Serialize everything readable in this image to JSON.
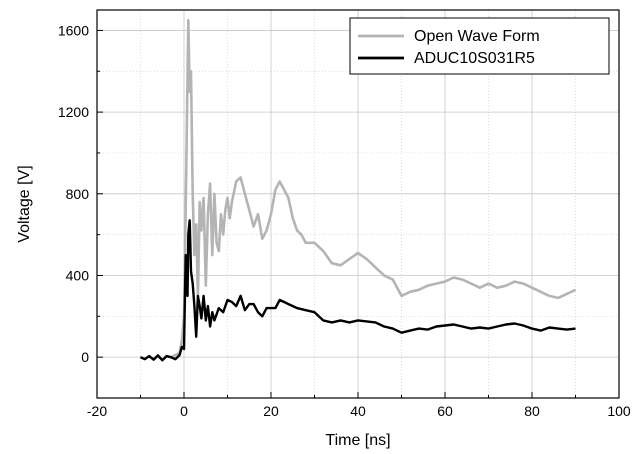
{
  "chart_data": {
    "type": "line",
    "xlabel": "Time [ns]",
    "ylabel": "Voltage [V]",
    "xlim": [
      -20,
      100
    ],
    "ylim": [
      -200,
      1700
    ],
    "xticks": [
      -20,
      0,
      20,
      40,
      60,
      80,
      100
    ],
    "yticks": [
      0,
      400,
      800,
      1200,
      1600
    ],
    "grid": true,
    "legend": "top-right",
    "series": [
      {
        "name": "Open Wave Form",
        "color": "#b4b4b4",
        "x": [
          -10,
          -9,
          -8,
          -7,
          -6,
          -5,
          -4,
          -3,
          -2,
          -1,
          -0.5,
          0,
          0.5,
          1,
          1.3,
          1.6,
          2,
          2.4,
          2.8,
          3.2,
          3.6,
          4,
          4.5,
          5,
          5.5,
          6,
          6.5,
          7,
          7.5,
          8,
          8.5,
          9,
          9.5,
          10,
          10.5,
          11,
          12,
          13,
          14,
          15,
          16,
          17,
          18,
          19,
          20,
          21,
          22,
          23,
          24,
          25,
          26,
          27,
          28,
          30,
          32,
          34,
          36,
          38,
          40,
          42,
          44,
          46,
          48,
          50,
          52,
          54,
          56,
          58,
          60,
          62,
          64,
          66,
          68,
          70,
          72,
          74,
          76,
          78,
          80,
          82,
          84,
          86,
          88,
          90
        ],
        "y": [
          0,
          -8,
          5,
          -12,
          10,
          -15,
          5,
          0,
          10,
          20,
          80,
          200,
          900,
          1650,
          1300,
          1400,
          800,
          500,
          650,
          300,
          760,
          620,
          780,
          350,
          700,
          850,
          500,
          800,
          560,
          520,
          700,
          600,
          720,
          780,
          680,
          760,
          860,
          880,
          800,
          720,
          640,
          700,
          580,
          620,
          700,
          820,
          860,
          820,
          780,
          680,
          620,
          600,
          560,
          560,
          520,
          460,
          450,
          480,
          510,
          480,
          440,
          400,
          380,
          300,
          320,
          330,
          350,
          360,
          370,
          390,
          380,
          360,
          340,
          360,
          340,
          350,
          370,
          360,
          340,
          320,
          300,
          290,
          310,
          330
        ]
      },
      {
        "name": "ADUC10S031R5",
        "color": "#000000",
        "x": [
          -10,
          -9,
          -8,
          -7,
          -6,
          -5,
          -4,
          -3,
          -2,
          -1,
          -0.5,
          0,
          0.4,
          0.8,
          1,
          1.3,
          1.6,
          2,
          2.4,
          2.8,
          3.2,
          3.6,
          4,
          4.5,
          5,
          5.5,
          6,
          6.5,
          7,
          8,
          9,
          10,
          11,
          12,
          13,
          14,
          15,
          16,
          17,
          18,
          19,
          20,
          21,
          22,
          23,
          24,
          25,
          26,
          28,
          30,
          32,
          34,
          36,
          38,
          40,
          42,
          44,
          46,
          48,
          50,
          52,
          54,
          56,
          58,
          60,
          62,
          64,
          66,
          68,
          70,
          72,
          74,
          76,
          78,
          80,
          82,
          84,
          86,
          88,
          90
        ],
        "y": [
          0,
          -10,
          5,
          -12,
          8,
          -15,
          5,
          0,
          -10,
          10,
          50,
          40,
          500,
          300,
          600,
          670,
          420,
          360,
          250,
          100,
          300,
          250,
          190,
          300,
          180,
          250,
          150,
          220,
          180,
          240,
          220,
          280,
          270,
          250,
          300,
          230,
          260,
          260,
          220,
          200,
          240,
          240,
          240,
          280,
          270,
          260,
          250,
          240,
          230,
          220,
          180,
          170,
          180,
          170,
          180,
          175,
          170,
          150,
          140,
          120,
          130,
          140,
          135,
          150,
          155,
          160,
          150,
          140,
          145,
          140,
          150,
          160,
          165,
          155,
          140,
          130,
          145,
          140,
          135,
          140
        ]
      }
    ]
  }
}
